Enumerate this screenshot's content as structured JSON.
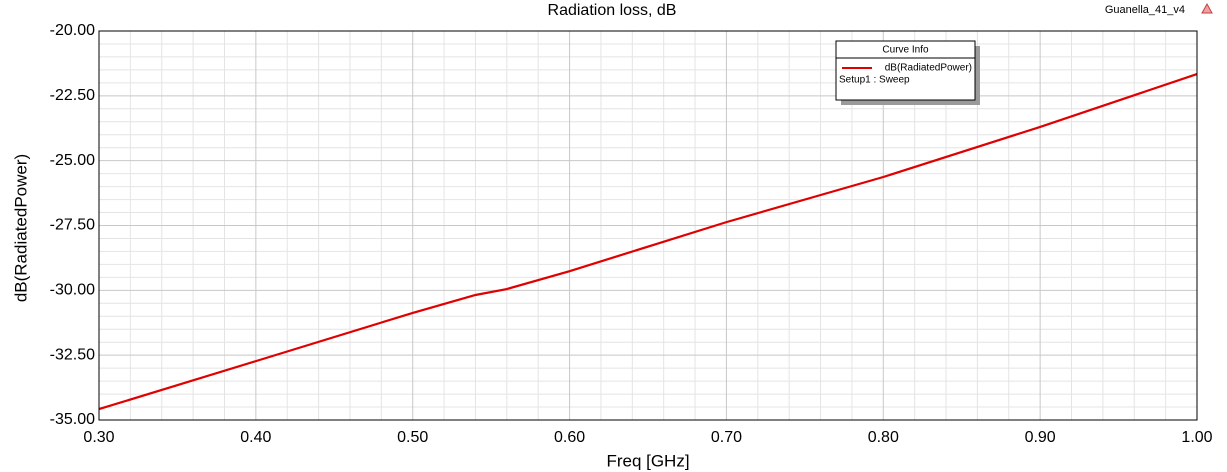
{
  "chart_data": {
    "type": "line",
    "title": "Radiation loss, dB",
    "design_name": "Guanella_41_v4",
    "xlabel": "Freq [GHz]",
    "ylabel": "dB(RadiatedPower)",
    "x": [
      0.3,
      0.4,
      0.5,
      0.54,
      0.56,
      0.6,
      0.7,
      0.8,
      0.9,
      1.0
    ],
    "series": [
      {
        "name": "dB(RadiatedPower)",
        "color": "#e00000",
        "values": [
          -34.58,
          -32.73,
          -30.87,
          -30.18,
          -29.95,
          -29.26,
          -27.37,
          -25.63,
          -23.7,
          -21.66
        ]
      }
    ],
    "xlim": [
      0.3,
      1.0
    ],
    "ylim": [
      -35,
      -20
    ],
    "xticks": [
      {
        "value": 0.3,
        "label": "0.30"
      },
      {
        "value": 0.4,
        "label": "0.40"
      },
      {
        "value": 0.5,
        "label": "0.50"
      },
      {
        "value": 0.6,
        "label": "0.60"
      },
      {
        "value": 0.7,
        "label": "0.70"
      },
      {
        "value": 0.8,
        "label": "0.80"
      },
      {
        "value": 0.9,
        "label": "0.90"
      },
      {
        "value": 1.0,
        "label": "1.00"
      }
    ],
    "yticks": [
      {
        "value": -20,
        "label": "-20.00"
      },
      {
        "value": -22.5,
        "label": "-22.50"
      },
      {
        "value": -25,
        "label": "-25.00"
      },
      {
        "value": -27.5,
        "label": "-27.50"
      },
      {
        "value": -30,
        "label": "-30.00"
      },
      {
        "value": -32.5,
        "label": "-32.50"
      },
      {
        "value": -35,
        "label": "-35.00"
      }
    ],
    "grid": true,
    "legend_title": "Curve Info",
    "legend_note": "Setup1 : Sweep",
    "legend_position": "top-right"
  }
}
